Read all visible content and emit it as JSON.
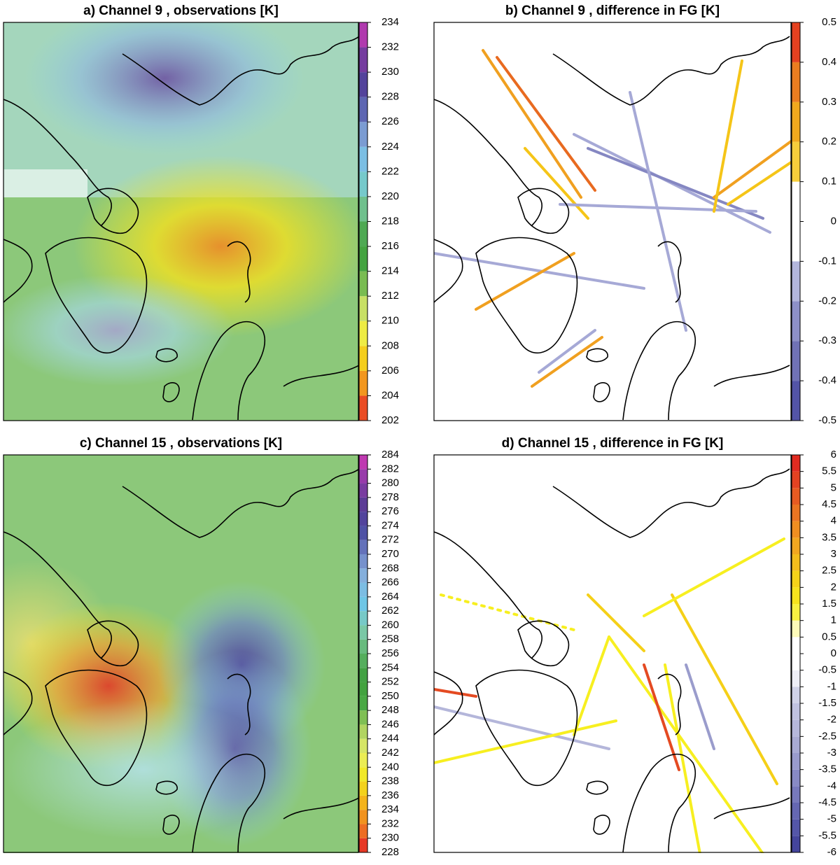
{
  "chart_data": [
    {
      "type": "map",
      "title": "a) Channel  9 , observations [K]",
      "zlim": [
        202,
        234
      ],
      "zticks": [
        202,
        204,
        206,
        208,
        210,
        212,
        214,
        216,
        218,
        220,
        222,
        224,
        226,
        228,
        230,
        232,
        234
      ],
      "colors": [
        "#e41e26",
        "#ef7a22",
        "#f4b41c",
        "#f3e81e",
        "#e8ef6a",
        "#a8d060",
        "#49a844",
        "#3d9e3c",
        "#5fb46a",
        "#7ecbb0",
        "#6ec6e6",
        "#87b6e0",
        "#6f82c4",
        "#4a4aa0",
        "#5c3c96",
        "#8e3ca8",
        "#d238b4"
      ]
    },
    {
      "type": "map",
      "title": "b) Channel  9 , difference in FG [K]",
      "zlim": [
        -0.5,
        0.5
      ],
      "zticks": [
        -0.5,
        -0.4,
        -0.3,
        -0.2,
        -0.1,
        0,
        0.1,
        0.2,
        0.3,
        0.4,
        0.5
      ],
      "colors": [
        "#4545a0",
        "#6466b0",
        "#8587c2",
        "#a6a9d6",
        "#ffffff",
        "#ffffff",
        "#f5c518",
        "#f0a020",
        "#e86a20",
        "#e02020"
      ]
    },
    {
      "type": "map",
      "title": "c) Channel  15 , observations [K]",
      "zlim": [
        228,
        284
      ],
      "zticks": [
        228,
        230,
        232,
        234,
        236,
        238,
        240,
        242,
        244,
        246,
        248,
        250,
        252,
        254,
        256,
        258,
        260,
        262,
        264,
        266,
        268,
        270,
        272,
        274,
        276,
        278,
        280,
        282,
        284
      ],
      "colors": [
        "#e41e26",
        "#ef7a22",
        "#f4b41c",
        "#f3e81e",
        "#e8ef6a",
        "#a8d060",
        "#49a844",
        "#3d9e3c",
        "#5fb46a",
        "#7ecbb0",
        "#6ec6e6",
        "#87b6e0",
        "#6f82c4",
        "#4a4aa0",
        "#5c3c96",
        "#8e3ca8",
        "#d238b4"
      ]
    },
    {
      "type": "map",
      "title": "d) Channel  15 , difference in FG [K]",
      "zlim": [
        -6,
        6
      ],
      "zticks": [
        -6,
        -5.5,
        -5,
        -4.5,
        -4,
        -3.5,
        -3,
        -2.5,
        -2,
        -1.5,
        -1,
        -0.5,
        0,
        0.5,
        1,
        1.5,
        2,
        2.5,
        3,
        3.5,
        4,
        4.5,
        5,
        5.5,
        6
      ],
      "colors": [
        "#3c3c96",
        "#5a5cac",
        "#7a7cbe",
        "#9a9ccc",
        "#b4b6da",
        "#c8cae4",
        "#ffffff",
        "#ffffff",
        "#f7ef20",
        "#f5d018",
        "#f2a820",
        "#ec7a22",
        "#e44a22",
        "#e02020"
      ]
    }
  ]
}
